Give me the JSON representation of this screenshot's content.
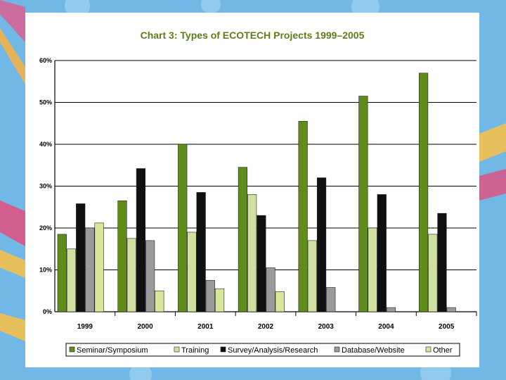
{
  "chart_data": {
    "type": "bar",
    "title": "Chart 3: Types of ECOTECH Projects 1999–2005",
    "xlabel": "",
    "ylabel": "",
    "categories": [
      "1999",
      "2000",
      "2001",
      "2002",
      "2003",
      "2004",
      "2005"
    ],
    "y_ticks": [
      "0%",
      "10%",
      "20%",
      "30%",
      "40%",
      "50%",
      "60%"
    ],
    "ylim": [
      0,
      60
    ],
    "grid": true,
    "legend_position": "bottom",
    "series": [
      {
        "name": "Seminar/Symposium",
        "color": "#5f8c1a",
        "values": [
          18.5,
          26.5,
          40,
          34.5,
          45.5,
          51.5,
          57
        ]
      },
      {
        "name": "Training",
        "color": "#cfe0a0",
        "values": [
          15,
          17.5,
          19,
          28,
          17,
          20,
          18.5
        ]
      },
      {
        "name": "Survey/Analysis/Research",
        "color": "#101010",
        "values": [
          25.8,
          34.2,
          28.5,
          23,
          32,
          28,
          23.5
        ]
      },
      {
        "name": "Database/Website",
        "color": "#9a9a9a",
        "values": [
          20,
          17,
          7.5,
          10.5,
          5.8,
          1,
          1
        ]
      },
      {
        "name": "Other",
        "color": "#d7e79a",
        "values": [
          21.2,
          5,
          5.5,
          4.8,
          0,
          0,
          0
        ]
      }
    ]
  }
}
